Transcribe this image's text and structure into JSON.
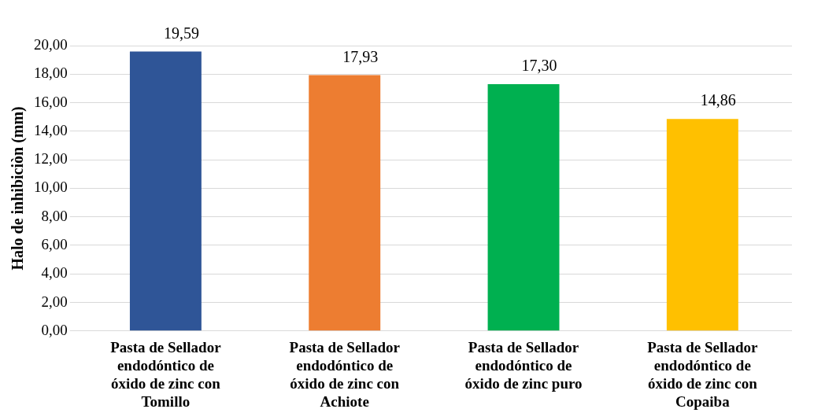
{
  "chart_data": {
    "type": "bar",
    "ylabel": "Halo de inhibiciòn (mm)",
    "categories": [
      "Pasta de Sellador endodóntico de óxido de zinc con Tomillo",
      "Pasta de Sellador endodóntico de óxido de zinc con Achiote",
      "Pasta de Sellador endodóntico de óxido de zinc puro",
      "Pasta de Sellador endodóntico de óxido de zinc con Copaiba"
    ],
    "values": [
      19.59,
      17.93,
      17.3,
      14.86
    ],
    "colors": [
      "#2f5597",
      "#ed7d31",
      "#00b050",
      "#ffc000"
    ],
    "value_labels": [
      "19,59",
      "17,93",
      "17,30",
      "14,86"
    ],
    "ylim": [
      0,
      20
    ],
    "yticks": [
      {
        "value": 0,
        "label": "0,00"
      },
      {
        "value": 2,
        "label": "2,00"
      },
      {
        "value": 4,
        "label": "4,00"
      },
      {
        "value": 6,
        "label": "6,00"
      },
      {
        "value": 8,
        "label": "8,00"
      },
      {
        "value": 10,
        "label": "10,00"
      },
      {
        "value": 12,
        "label": "12,00"
      },
      {
        "value": 14,
        "label": "14,00"
      },
      {
        "value": 16,
        "label": "16,00"
      },
      {
        "value": 18,
        "label": "18,00"
      },
      {
        "value": 20,
        "label": "20,00"
      }
    ],
    "grid": "y",
    "legend": false
  }
}
